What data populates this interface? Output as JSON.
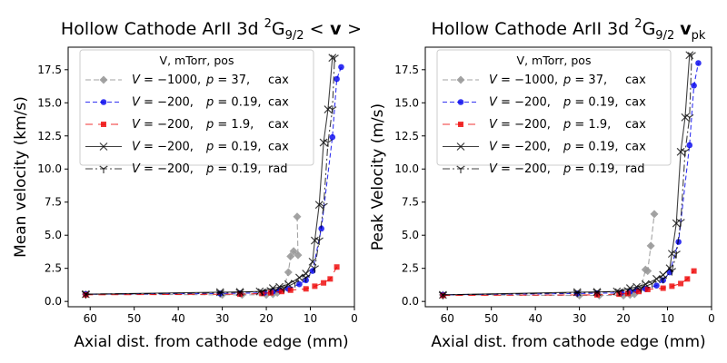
{
  "chart_data": [
    {
      "type": "line",
      "title_main": "Hollow Cathode ArII 3d ",
      "title_sup": "2",
      "title_G": "G",
      "title_sub": "9/2",
      "title_tail_plain": "  <",
      "title_tail_bold": "v",
      "title_tail_close": ">",
      "xlabel": "Axial dist. from cathode edge (mm)",
      "ylabel": "Mean velocity (km/s)",
      "xlim": [
        65,
        0
      ],
      "ylim": [
        -0.4,
        19.2
      ],
      "xticks": [
        60,
        50,
        40,
        30,
        20,
        10,
        0
      ],
      "yticks": [
        0.0,
        2.5,
        5.0,
        7.5,
        10.0,
        12.5,
        15.0,
        17.5
      ],
      "legend_title": "V, mTorr, pos",
      "legend_loc": "upper left",
      "series": [
        {
          "name": "V = −1000,  p = 37,    cax",
          "V": "−1000",
          "p": "37",
          "pos": "cax",
          "color": "#999999",
          "dash": "6,3",
          "marker": "diamond",
          "opacity": 0.9,
          "values": [
            [
              61,
              0.55
            ],
            [
              30,
              0.5
            ],
            [
              25.5,
              0.5
            ],
            [
              20,
              0.5
            ],
            [
              18.5,
              0.55
            ],
            [
              17.5,
              0.65
            ],
            [
              16,
              1.0
            ],
            [
              15,
              2.2
            ],
            [
              14.5,
              3.4
            ],
            [
              13.8,
              3.8
            ],
            [
              12.8,
              3.5
            ],
            [
              13.0,
              6.4
            ]
          ]
        },
        {
          "name": "V = −200,    p = 0.19, cax",
          "V": "−200",
          "p": "0.19",
          "pos": "cax",
          "color": "#0000ee",
          "dash": "5,3",
          "marker": "circle",
          "opacity": 0.8,
          "values": [
            [
              61,
              0.55
            ],
            [
              30.5,
              0.6
            ],
            [
              26,
              0.62
            ],
            [
              20.5,
              0.65
            ],
            [
              18.5,
              0.75
            ],
            [
              17,
              0.85
            ],
            [
              15,
              0.95
            ],
            [
              12.5,
              1.3
            ],
            [
              11,
              1.6
            ],
            [
              9.5,
              2.3
            ],
            [
              7.5,
              5.5
            ],
            [
              5,
              12.4
            ],
            [
              4,
              16.8
            ],
            [
              3,
              17.7
            ]
          ]
        },
        {
          "name": "V = −200,    p = 1.9,    cax",
          "V": "−200",
          "p": "1.9",
          "pos": "cax",
          "color": "#ee0000",
          "dash": "8,6",
          "marker": "square",
          "opacity": 0.8,
          "values": [
            [
              61,
              0.5
            ],
            [
              26,
              0.55
            ],
            [
              21,
              0.6
            ],
            [
              19,
              0.65
            ],
            [
              16.5,
              0.75
            ],
            [
              14.5,
              0.85
            ],
            [
              11,
              0.95
            ],
            [
              9,
              1.15
            ],
            [
              7,
              1.4
            ],
            [
              5.5,
              1.7
            ],
            [
              4,
              2.6
            ]
          ]
        },
        {
          "name": "V = −200,    p = 0.19, cax",
          "V": "−200",
          "p": "0.19",
          "pos": "cax",
          "color": "#000000",
          "dash": "",
          "marker": "x",
          "opacity": 0.75,
          "values": [
            [
              61,
              0.55
            ],
            [
              30.5,
              0.7
            ],
            [
              26,
              0.72
            ],
            [
              21.5,
              0.75
            ],
            [
              18.5,
              1.0
            ],
            [
              17,
              1.1
            ],
            [
              15,
              1.3
            ],
            [
              12.5,
              1.8
            ],
            [
              11,
              2.1
            ],
            [
              9.5,
              3.0
            ],
            [
              9,
              4.6
            ],
            [
              8,
              7.3
            ],
            [
              7,
              12.0
            ],
            [
              6,
              14.5
            ],
            [
              5,
              18.4
            ]
          ]
        },
        {
          "name": "V = −200,    p = 0.19, rad",
          "V": "−200",
          "p": "0.19",
          "pos": "rad",
          "color": "#000000",
          "dash": "8,3,2,3",
          "marker": "tri",
          "opacity": 0.75,
          "values": [
            [
              61,
              0.55
            ],
            [
              30.5,
              0.65
            ],
            [
              26,
              0.7
            ],
            [
              21,
              0.75
            ],
            [
              19,
              0.85
            ],
            [
              16,
              1.0
            ],
            [
              13.5,
              1.4
            ],
            [
              11,
              1.8
            ],
            [
              9,
              2.5
            ],
            [
              8,
              4.6
            ],
            [
              7,
              7.2
            ],
            [
              6,
              12.0
            ],
            [
              5,
              14.5
            ],
            [
              4.5,
              18.4
            ]
          ]
        }
      ]
    },
    {
      "type": "line",
      "title_main": "Hollow Cathode ArII 3d ",
      "title_sup": "2",
      "title_G": "G",
      "title_sub": "9/2",
      "title_tail_bold": "v",
      "title_tail_sub": "pk",
      "xlabel": "Axial dist. from cathode edge (mm)",
      "ylabel": "Peak Velocity (m/s)",
      "xlim": [
        65,
        0
      ],
      "ylim": [
        -0.4,
        19.2
      ],
      "xticks": [
        60,
        50,
        40,
        30,
        20,
        10,
        0
      ],
      "yticks": [
        0.0,
        2.5,
        5.0,
        7.5,
        10.0,
        12.5,
        15.0,
        17.5
      ],
      "legend_title": "V, mTorr, pos",
      "legend_loc": "upper left",
      "series": [
        {
          "name": "V = −1000,  p = 37,    cax",
          "V": "−1000",
          "p": "37",
          "pos": "cax",
          "color": "#999999",
          "dash": "6,3",
          "marker": "diamond",
          "opacity": 0.9,
          "values": [
            [
              61,
              0.5
            ],
            [
              30,
              0.45
            ],
            [
              25.5,
              0.45
            ],
            [
              20,
              0.45
            ],
            [
              18.5,
              0.5
            ],
            [
              17.5,
              0.55
            ],
            [
              16,
              1.0
            ],
            [
              15,
              2.4
            ],
            [
              14.5,
              2.3
            ],
            [
              13.8,
              4.2
            ],
            [
              13.0,
              6.6
            ]
          ]
        },
        {
          "name": "V = −200,    p = 0.19, cax",
          "V": "−200",
          "p": "0.19",
          "pos": "cax",
          "color": "#0000ee",
          "dash": "5,3",
          "marker": "circle",
          "opacity": 0.8,
          "values": [
            [
              61,
              0.5
            ],
            [
              30.5,
              0.6
            ],
            [
              26,
              0.62
            ],
            [
              20.5,
              0.65
            ],
            [
              18.5,
              0.75
            ],
            [
              17,
              0.85
            ],
            [
              15,
              0.95
            ],
            [
              12.5,
              1.2
            ],
            [
              11,
              1.6
            ],
            [
              9.5,
              2.2
            ],
            [
              7.5,
              4.5
            ],
            [
              5,
              11.8
            ],
            [
              4,
              16.3
            ],
            [
              3,
              18.0
            ]
          ]
        },
        {
          "name": "V = −200,    p = 1.9,    cax",
          "V": "−200",
          "p": "1.9",
          "pos": "cax",
          "color": "#ee0000",
          "dash": "8,6",
          "marker": "square",
          "opacity": 0.8,
          "values": [
            [
              61,
              0.45
            ],
            [
              26,
              0.5
            ],
            [
              21,
              0.55
            ],
            [
              19,
              0.6
            ],
            [
              16.5,
              0.75
            ],
            [
              14.5,
              0.9
            ],
            [
              11,
              1.0
            ],
            [
              9,
              1.15
            ],
            [
              7,
              1.35
            ],
            [
              5.5,
              1.7
            ],
            [
              4,
              2.3
            ]
          ]
        },
        {
          "name": "V = −200,    p = 0.19, cax",
          "V": "−200",
          "p": "0.19",
          "pos": "cax",
          "color": "#000000",
          "dash": "",
          "marker": "x",
          "opacity": 0.75,
          "values": [
            [
              61,
              0.5
            ],
            [
              30.5,
              0.7
            ],
            [
              26,
              0.72
            ],
            [
              21.5,
              0.75
            ],
            [
              18.5,
              1.0
            ],
            [
              17,
              1.1
            ],
            [
              15,
              1.3
            ],
            [
              12.5,
              1.7
            ],
            [
              11,
              2.0
            ],
            [
              9.5,
              2.5
            ],
            [
              9,
              3.6
            ],
            [
              8,
              5.9
            ],
            [
              7,
              11.3
            ],
            [
              6,
              13.9
            ],
            [
              5,
              18.6
            ]
          ]
        },
        {
          "name": "V = −200,    p = 0.19, rad",
          "V": "−200",
          "p": "0.19",
          "pos": "rad",
          "color": "#000000",
          "dash": "8,3,2,3",
          "marker": "tri",
          "opacity": 0.75,
          "values": [
            [
              61,
              0.5
            ],
            [
              30.5,
              0.65
            ],
            [
              26,
              0.7
            ],
            [
              21,
              0.75
            ],
            [
              19,
              0.85
            ],
            [
              16,
              1.0
            ],
            [
              13.5,
              1.35
            ],
            [
              11,
              1.7
            ],
            [
              9,
              2.3
            ],
            [
              8,
              3.6
            ],
            [
              7,
              6.0
            ],
            [
              6,
              11.3
            ],
            [
              5,
              13.9
            ],
            [
              4.5,
              18.6
            ]
          ]
        }
      ]
    }
  ]
}
